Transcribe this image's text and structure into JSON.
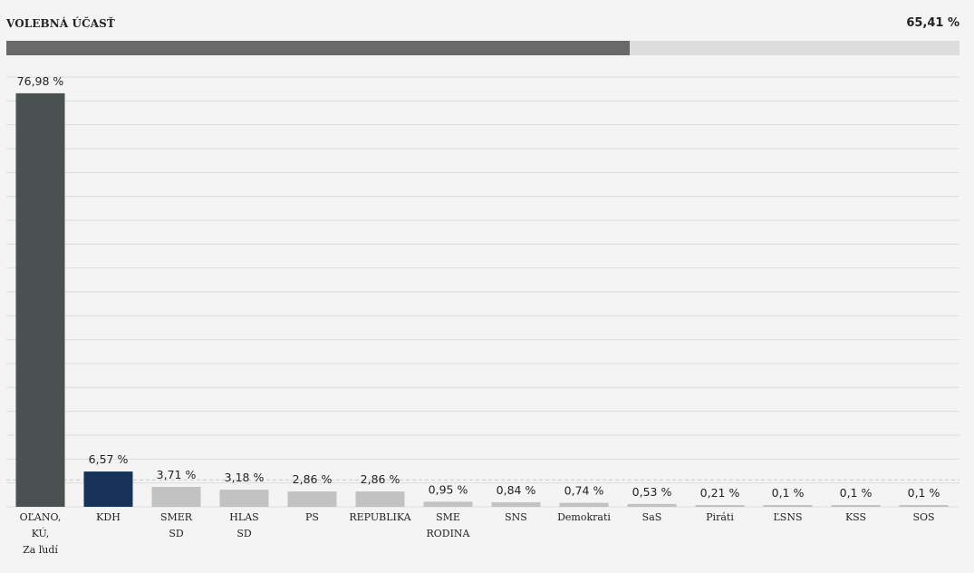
{
  "turnout": {
    "label": "VOLEBNÁ ÚČASŤ",
    "value_text": "65,41 %",
    "value": 65.41
  },
  "colors": {
    "background": "#f4f4f4",
    "turnout_fill": "#696969",
    "turnout_track": "#dddddd",
    "leader": "#4a5151",
    "second": "#17335a",
    "others": "#c2c2c2",
    "grid": "#dcdcdc"
  },
  "chart_data": {
    "type": "bar",
    "ylim": [
      0,
      80
    ],
    "grid": true,
    "threshold_line": {
      "value": 5,
      "style": "dashed"
    },
    "categories": [
      [
        "OĽANO,",
        "KÚ,",
        "Za ľudí"
      ],
      [
        "KDH"
      ],
      [
        "SMER",
        "SD"
      ],
      [
        "HLAS",
        "SD"
      ],
      [
        "PS"
      ],
      [
        "REPUBLIKA"
      ],
      [
        "SME",
        "RODINA"
      ],
      [
        "SNS"
      ],
      [
        "Demokrati"
      ],
      [
        "SaS"
      ],
      [
        "Piráti"
      ],
      [
        "ĽSNS"
      ],
      [
        "KSS"
      ],
      [
        "SOS"
      ]
    ],
    "values": [
      76.98,
      6.57,
      3.71,
      3.18,
      2.86,
      2.86,
      0.95,
      0.84,
      0.74,
      0.53,
      0.21,
      0.1,
      0.1,
      0.1
    ],
    "value_labels": [
      "76,98 %",
      "6,57 %",
      "3,71 %",
      "3,18 %",
      "2,86 %",
      "2,86 %",
      "0,95 %",
      "0,84 %",
      "0,74 %",
      "0,53 %",
      "0,21 %",
      "0,1 %",
      "0,1 %",
      "0,1 %"
    ],
    "bar_colors": [
      "#4a5151",
      "#17335a",
      "#c2c2c2",
      "#c2c2c2",
      "#c2c2c2",
      "#c2c2c2",
      "#c2c2c2",
      "#c2c2c2",
      "#c2c2c2",
      "#c2c2c2",
      "#c2c2c2",
      "#c2c2c2",
      "#c2c2c2",
      "#c2c2c2"
    ]
  }
}
